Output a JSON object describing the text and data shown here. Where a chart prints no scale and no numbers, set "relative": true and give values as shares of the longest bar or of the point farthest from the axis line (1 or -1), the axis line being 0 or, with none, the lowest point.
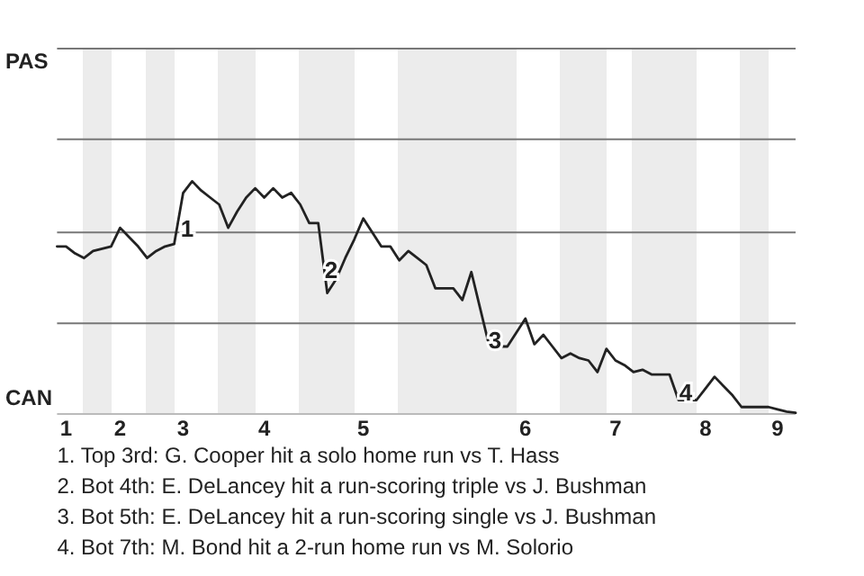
{
  "chart_data": {
    "type": "line",
    "relative": true,
    "categories": [
      null,
      "1",
      null,
      null,
      null,
      null,
      null,
      "2",
      null,
      null,
      null,
      null,
      null,
      null,
      "3",
      null,
      null,
      null,
      null,
      null,
      null,
      null,
      null,
      "4",
      null,
      null,
      null,
      null,
      null,
      null,
      null,
      null,
      null,
      null,
      "5",
      null,
      null,
      null,
      null,
      null,
      null,
      null,
      null,
      null,
      null,
      null,
      null,
      null,
      null,
      null,
      null,
      null,
      "6",
      null,
      null,
      null,
      null,
      null,
      null,
      null,
      null,
      null,
      "7",
      null,
      null,
      null,
      null,
      null,
      null,
      null,
      null,
      null,
      "8",
      null,
      null,
      null,
      null,
      null,
      null,
      null,
      "9",
      null,
      null
    ],
    "series": [
      {
        "color": "#222222",
        "values": [
          0.72,
          0.72,
          0.69,
          0.67,
          0.7,
          0.71,
          0.72,
          0.8,
          0.76,
          0.72,
          0.67,
          0.7,
          0.72,
          0.73,
          0.95,
          1,
          0.96,
          0.93,
          0.9,
          0.8,
          0.87,
          0.93,
          0.97,
          0.93,
          0.97,
          0.93,
          0.95,
          0.9,
          0.82,
          0.82,
          0.52,
          0.58,
          0.67,
          0.75,
          0.84,
          0.78,
          0.72,
          0.72,
          0.66,
          0.7,
          0.67,
          0.64,
          0.54,
          0.54,
          0.54,
          0.49,
          0.61,
          0.45,
          0.29,
          0.29,
          0.29,
          0.35,
          0.41,
          0.3,
          0.34,
          0.29,
          0.24,
          0.26,
          0.24,
          0.23,
          0.18,
          0.28,
          0.23,
          0.21,
          0.18,
          0.19,
          0.17,
          0.17,
          0.17,
          0.06,
          0.06,
          0.06,
          0.11,
          0.16,
          0.12,
          0.08,
          0.03,
          0.03,
          0.03,
          0.03,
          0.02,
          0.01,
          0.005
        ]
      }
    ],
    "marker": "none",
    "ref_lines": [
      {
        "axis": "y",
        "value": 0.39,
        "color": "#777777"
      },
      {
        "axis": "y",
        "value": 0.78,
        "color": "#777777"
      },
      {
        "axis": "y",
        "value": 1.18,
        "color": "#777777"
      },
      {
        "axis": "y",
        "value": 1.57,
        "color": "#777777"
      }
    ],
    "annotations": [
      "PAS",
      "CAN",
      "1",
      "2",
      "3",
      "4",
      "1. Top 3rd: G. Cooper hit a solo home run vs T. Hass",
      "2. Bot 4th: E. DeLancey hit a run-scoring triple vs J. Bushman",
      "3. Bot 5th: E. DeLancey hit a run-scoring single vs J. Bushman",
      "4. Bot 7th: M. Bond hit a 2-run home run vs M. Solorio"
    ]
  }
}
